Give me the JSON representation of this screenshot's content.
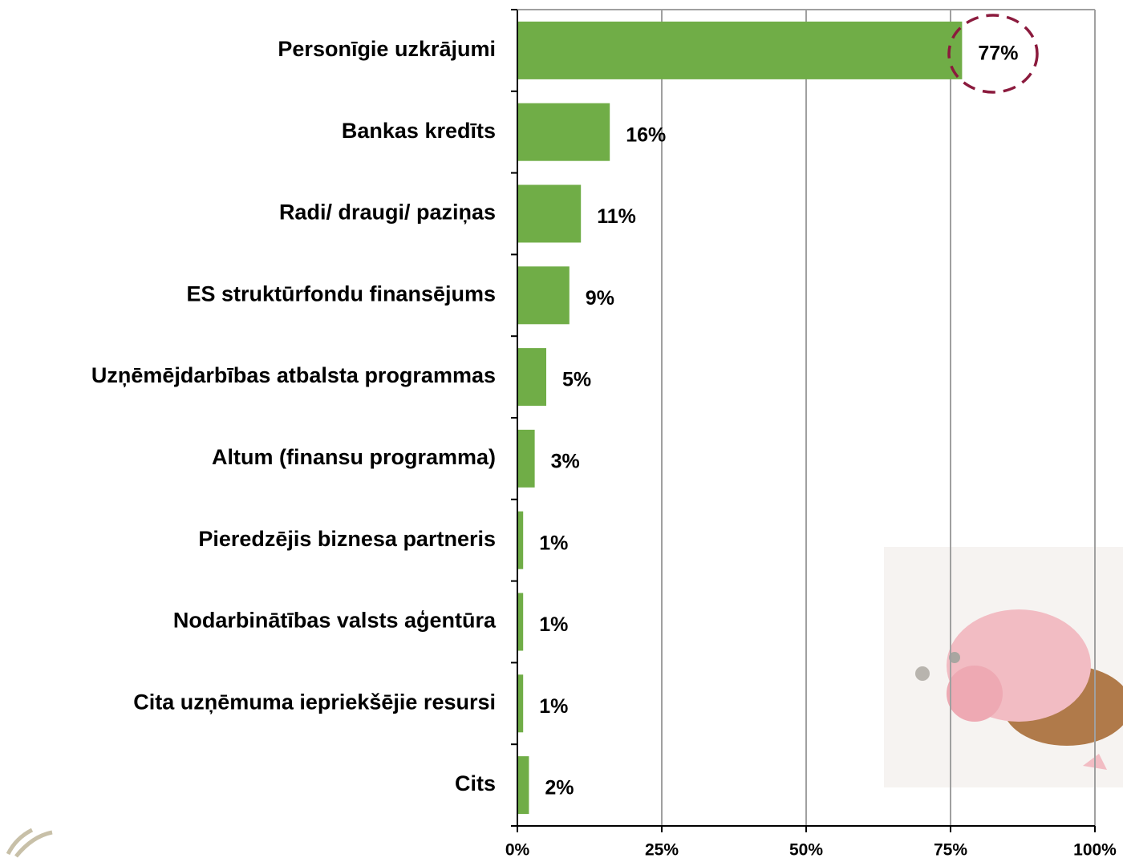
{
  "chart_data": {
    "type": "bar",
    "orientation": "horizontal",
    "categories": [
      "Personīgie uzkrājumi",
      "Bankas kredīts",
      "Radi/ draugi/ paziņas",
      "ES struktūrfondu finansējums",
      "Uzņēmējdarbības atbalsta programmas",
      "Altum (finansu programma)",
      "Pieredzējis biznesa partneris",
      "Nodarbinātības valsts aģentūra",
      "Cita uzņēmuma iepriekšējie resursi",
      "Cits"
    ],
    "values": [
      77,
      16,
      11,
      9,
      5,
      3,
      1,
      1,
      1,
      2
    ],
    "value_labels": [
      "77%",
      "16%",
      "11%",
      "9%",
      "5%",
      "3%",
      "1%",
      "1%",
      "1%",
      "2%"
    ],
    "color": "#70ad47",
    "xlim": [
      0,
      100
    ],
    "xticks": [
      {
        "value": 0,
        "label": "0%"
      },
      {
        "value": 25,
        "label": "25%"
      },
      {
        "value": 50,
        "label": "50%"
      },
      {
        "value": 75,
        "label": "75%"
      },
      {
        "value": 100,
        "label": "100%"
      }
    ],
    "grid": true
  }
}
